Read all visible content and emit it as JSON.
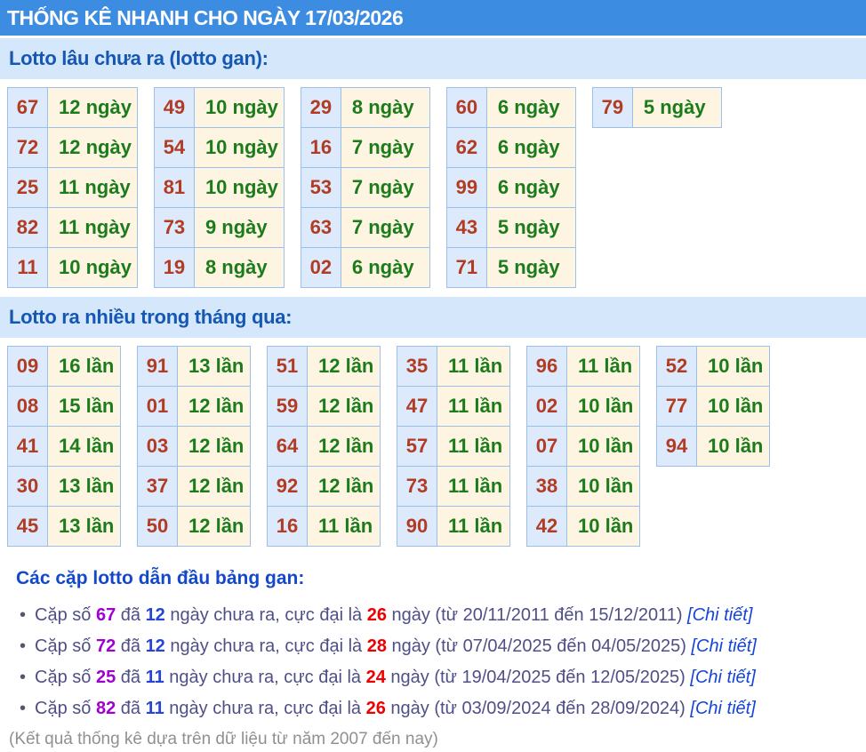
{
  "header": {
    "title": "THỐNG KÊ NHANH CHO NGÀY 17/03/2026"
  },
  "sections": {
    "gan": {
      "title": "Lotto lâu chưa ra (lotto gan):",
      "unit": "ngày",
      "tables": [
        [
          {
            "num": "67",
            "label": "12 ngày"
          },
          {
            "num": "72",
            "label": "12 ngày"
          },
          {
            "num": "25",
            "label": "11 ngày"
          },
          {
            "num": "82",
            "label": "11 ngày"
          },
          {
            "num": "11",
            "label": "10 ngày"
          }
        ],
        [
          {
            "num": "49",
            "label": "10 ngày"
          },
          {
            "num": "54",
            "label": "10 ngày"
          },
          {
            "num": "81",
            "label": "10 ngày"
          },
          {
            "num": "73",
            "label": "9 ngày"
          },
          {
            "num": "19",
            "label": "8 ngày"
          }
        ],
        [
          {
            "num": "29",
            "label": "8 ngày"
          },
          {
            "num": "16",
            "label": "7 ngày"
          },
          {
            "num": "53",
            "label": "7 ngày"
          },
          {
            "num": "63",
            "label": "7 ngày"
          },
          {
            "num": "02",
            "label": "6 ngày"
          }
        ],
        [
          {
            "num": "60",
            "label": "6 ngày"
          },
          {
            "num": "62",
            "label": "6 ngày"
          },
          {
            "num": "99",
            "label": "6 ngày"
          },
          {
            "num": "43",
            "label": "5 ngày"
          },
          {
            "num": "71",
            "label": "5 ngày"
          }
        ],
        [
          {
            "num": "79",
            "label": "5 ngày"
          }
        ]
      ]
    },
    "frequent": {
      "title": "Lotto ra nhiều trong tháng qua:",
      "unit": "lần",
      "tables": [
        [
          {
            "num": "09",
            "label": "16 lần"
          },
          {
            "num": "08",
            "label": "15 lần"
          },
          {
            "num": "41",
            "label": "14 lần"
          },
          {
            "num": "30",
            "label": "13 lần"
          },
          {
            "num": "45",
            "label": "13 lần"
          }
        ],
        [
          {
            "num": "91",
            "label": "13 lần"
          },
          {
            "num": "01",
            "label": "12 lần"
          },
          {
            "num": "03",
            "label": "12 lần"
          },
          {
            "num": "37",
            "label": "12 lần"
          },
          {
            "num": "50",
            "label": "12 lần"
          }
        ],
        [
          {
            "num": "51",
            "label": "12 lần"
          },
          {
            "num": "59",
            "label": "12 lần"
          },
          {
            "num": "64",
            "label": "12 lần"
          },
          {
            "num": "92",
            "label": "12 lần"
          },
          {
            "num": "16",
            "label": "11 lần"
          }
        ],
        [
          {
            "num": "35",
            "label": "11 lần"
          },
          {
            "num": "47",
            "label": "11 lần"
          },
          {
            "num": "57",
            "label": "11 lần"
          },
          {
            "num": "73",
            "label": "11 lần"
          },
          {
            "num": "90",
            "label": "11 lần"
          }
        ],
        [
          {
            "num": "96",
            "label": "11 lần"
          },
          {
            "num": "02",
            "label": "10 lần"
          },
          {
            "num": "07",
            "label": "10 lần"
          },
          {
            "num": "38",
            "label": "10 lần"
          },
          {
            "num": "42",
            "label": "10 lần"
          }
        ],
        [
          {
            "num": "52",
            "label": "10 lần"
          },
          {
            "num": "77",
            "label": "10 lần"
          },
          {
            "num": "94",
            "label": "10 lần"
          }
        ]
      ]
    },
    "pairs": {
      "title": "Các cặp lotto dẫn đầu bảng gan:",
      "bullet": "•",
      "items": [
        {
          "prefix": "Cặp số",
          "num": "67",
          "word_da": "đã",
          "days": "12",
          "mid": "ngày chưa ra, cực đại là",
          "max": "26",
          "suffix": "ngày (từ 20/11/2011 đến 15/12/2011)",
          "link": "[Chi tiết]"
        },
        {
          "prefix": "Cặp số",
          "num": "72",
          "word_da": "đã",
          "days": "12",
          "mid": "ngày chưa ra, cực đại là",
          "max": "28",
          "suffix": "ngày (từ 07/04/2025 đến 04/05/2025)",
          "link": "[Chi tiết]"
        },
        {
          "prefix": "Cặp số",
          "num": "25",
          "word_da": "đã",
          "days": "11",
          "mid": "ngày chưa ra, cực đại là",
          "max": "24",
          "suffix": "ngày (từ 19/04/2025 đến 12/05/2025)",
          "link": "[Chi tiết]"
        },
        {
          "prefix": "Cặp số",
          "num": "82",
          "word_da": "đã",
          "days": "11",
          "mid": "ngày chưa ra, cực đại là",
          "max": "26",
          "suffix": "ngày (từ 03/09/2024 đến 28/09/2024)",
          "link": "[Chi tiết]"
        }
      ],
      "footnote": "(Kết quả thống kê dựa trên dữ liệu từ năm 2007 đến nay)"
    }
  },
  "colors": {
    "header_bg": "#3c8ce2",
    "band_bg": "#d5e7fb",
    "band_text": "#1557b2",
    "number_text": "#b23c23",
    "count_text": "#1c7c1c",
    "number_cell_bg": "#dceafb",
    "count_cell_bg": "#fdf5e2",
    "cell_border": "#9cc0ec",
    "pairs_heading": "#1448cc",
    "pair_text": "#4f4f87",
    "pair_number": "#a000d0",
    "pair_days": "#2545d8",
    "pair_max": "#ee0000",
    "link": "#1544d8",
    "footnote": "#909090"
  }
}
